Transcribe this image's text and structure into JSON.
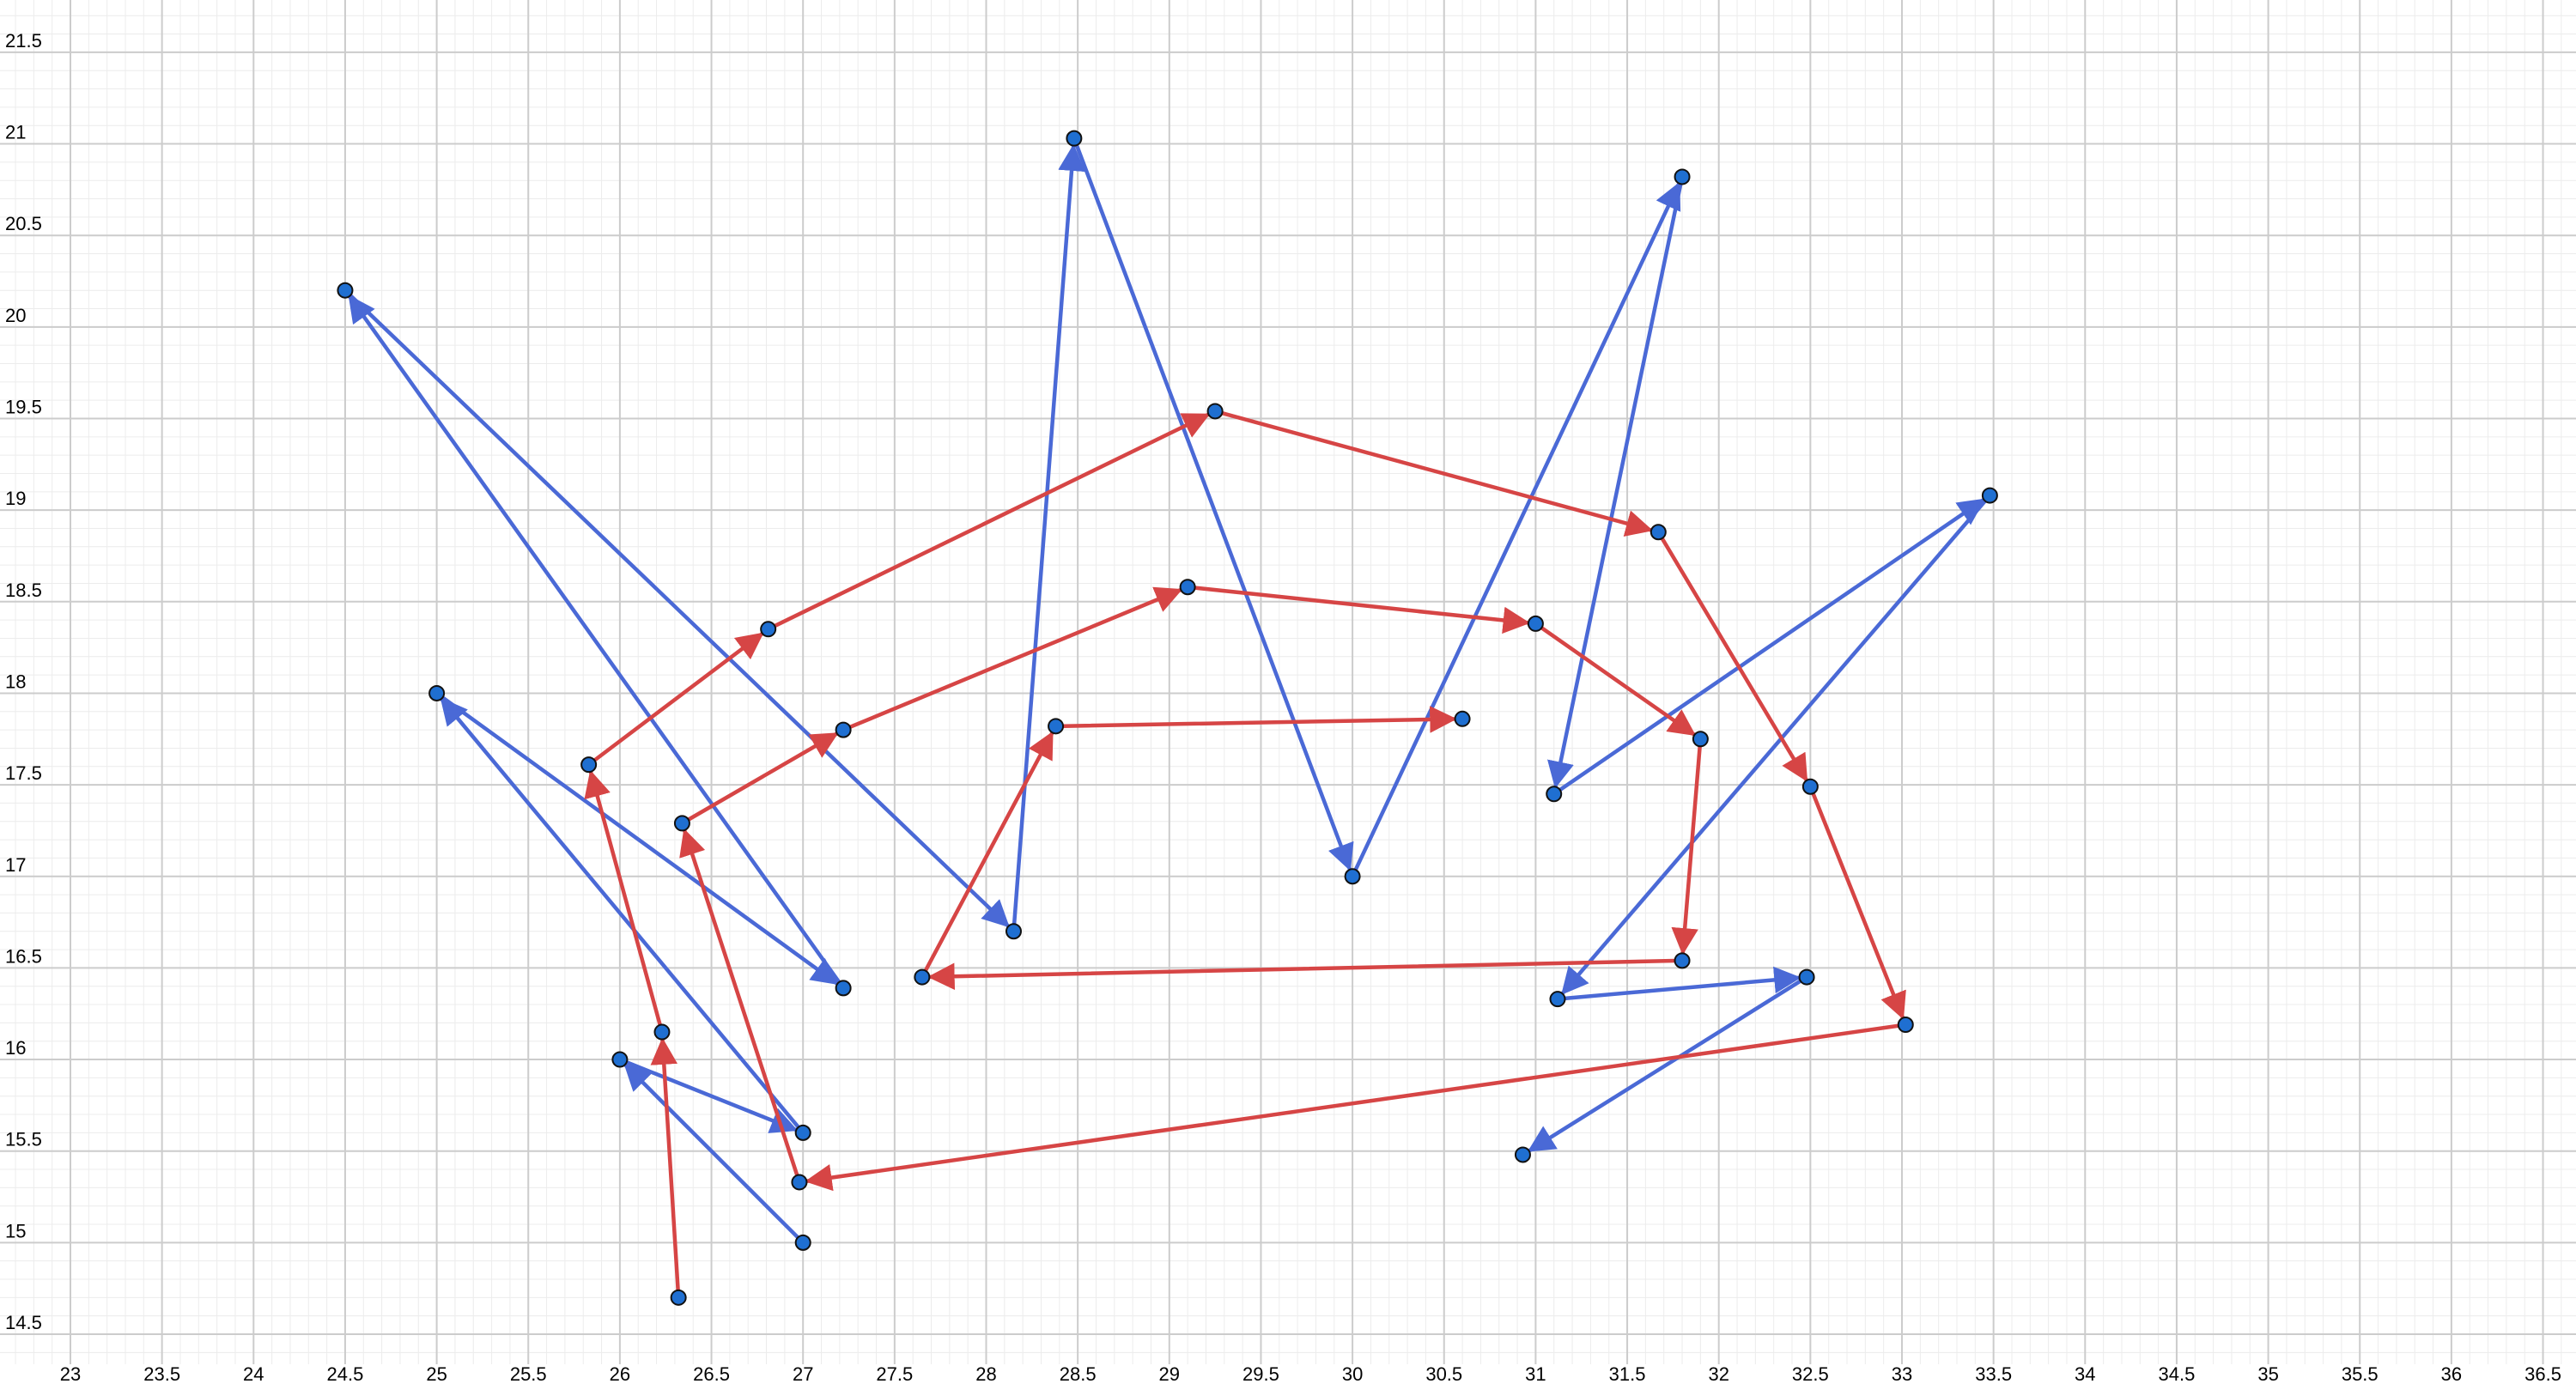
{
  "chart_data": {
    "type": "scatter",
    "title": "",
    "xlabel": "",
    "ylabel": "",
    "xlim": [
      23,
      36.5
    ],
    "ylim": [
      14.5,
      21.5
    ],
    "x_ticks": [
      "23",
      "23.5",
      "24",
      "24.5",
      "25",
      "25.5",
      "26",
      "26.5",
      "27",
      "27.5",
      "28",
      "28.5",
      "29",
      "29.5",
      "30",
      "30.5",
      "31",
      "31.5",
      "32",
      "32.5",
      "33",
      "33.5",
      "34",
      "34.5",
      "35",
      "35.5",
      "36",
      "36.5"
    ],
    "y_ticks": [
      "14.5",
      "15",
      "15.5",
      "16",
      "16.5",
      "17",
      "17.5",
      "18",
      "18.5",
      "19",
      "19.5",
      "20",
      "20.5",
      "21",
      "21.5"
    ],
    "grid": true,
    "point_color": "#1f6fd1",
    "series": [
      {
        "color": "#4a69d6",
        "points": [
          [
            27.0,
            15.0
          ],
          [
            26.0,
            16.0
          ],
          [
            27.0,
            15.6
          ],
          [
            25.0,
            18.0
          ],
          [
            27.22,
            16.39
          ],
          [
            24.5,
            20.2
          ],
          [
            28.15,
            16.7
          ],
          [
            28.48,
            21.03
          ],
          [
            30.0,
            17.0
          ],
          [
            31.8,
            20.82
          ],
          [
            31.1,
            17.45
          ],
          [
            33.48,
            19.08
          ],
          [
            31.12,
            16.33
          ],
          [
            32.48,
            16.45
          ],
          [
            30.93,
            15.48
          ]
        ]
      },
      {
        "color": "#d64545",
        "points": [
          [
            26.32,
            14.7
          ],
          [
            26.23,
            16.15
          ],
          [
            25.83,
            17.61
          ],
          [
            26.81,
            18.35
          ],
          [
            29.25,
            19.54
          ],
          [
            31.67,
            18.88
          ],
          [
            32.5,
            17.49
          ],
          [
            33.02,
            16.19
          ],
          [
            26.98,
            15.33
          ],
          [
            26.34,
            17.29
          ],
          [
            27.22,
            17.8
          ],
          [
            29.1,
            18.58
          ],
          [
            31.0,
            18.38
          ],
          [
            31.9,
            17.75
          ],
          [
            31.8,
            16.54
          ],
          [
            27.65,
            16.45
          ],
          [
            28.38,
            17.82
          ],
          [
            30.6,
            17.86
          ]
        ]
      }
    ]
  }
}
